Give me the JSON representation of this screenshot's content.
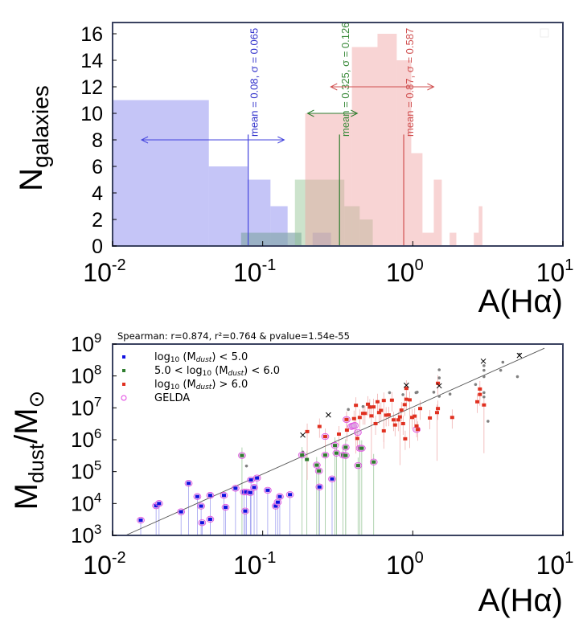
{
  "chart_data": [
    {
      "type": "histogram",
      "xlabel": "A(Hα)",
      "ylabel": "N_galaxies",
      "ylabel_main": "N",
      "ylabel_sub": "galaxies",
      "xscale": "log",
      "xlim": [
        0.01,
        10
      ],
      "ylim": [
        0,
        16.8
      ],
      "grid": false,
      "yticks": [
        "0",
        "2",
        "4",
        "6",
        "8",
        "10",
        "12",
        "14",
        "16"
      ],
      "xticks": [
        {
          "base": "10",
          "exp": "-2",
          "v": 0.01
        },
        {
          "base": "10",
          "exp": "-1",
          "v": 0.1
        },
        {
          "base": "10",
          "exp": "0",
          "v": 1
        },
        {
          "base": "10",
          "exp": "1",
          "v": 10
        }
      ],
      "series": [
        {
          "color": "#7f7fee",
          "bins": [
            [
              0.01,
              0.0438,
              11
            ],
            [
              0.0438,
              0.0791,
              6
            ],
            [
              0.0791,
              0.1127,
              5
            ],
            [
              0.1127,
              0.1466,
              3
            ],
            [
              0.0718,
              0.181,
              1
            ],
            [
              0.215,
              0.285,
              1
            ]
          ],
          "mean": 0.08,
          "mean_line_top": 8.4,
          "arrow": [
            0.0156,
            0.139,
            8
          ],
          "label": "mean = 0.08, σ = 0.065",
          "label_color": "#3333cc",
          "line_color": "#4444dd"
        },
        {
          "color": "#8fc08f",
          "bins": [
            [
              0.0718,
              0.181,
              1
            ],
            [
              0.164,
              0.35,
              5
            ],
            [
              0.35,
              0.443,
              3
            ],
            [
              0.443,
              0.541,
              2
            ]
          ],
          "mean": 0.325,
          "mean_line_top": 8.4,
          "arrow": [
            0.199,
            0.427,
            10
          ],
          "label": "mean = 0.325, σ = 0.126",
          "label_color": "#3a8a3a",
          "line_color": "#2e7d2e"
        },
        {
          "color": "#f0a0a0",
          "bins": [
            [
              0.192,
              0.393,
              10
            ],
            [
              0.393,
              0.582,
              15
            ],
            [
              0.582,
              0.782,
              16
            ],
            [
              0.782,
              0.977,
              14
            ],
            [
              0.977,
              1.16,
              7
            ],
            [
              1.16,
              1.38,
              1
            ],
            [
              1.38,
              1.56,
              5
            ],
            [
              1.76,
              1.95,
              1
            ],
            [
              2.55,
              2.75,
              1
            ],
            [
              2.75,
              2.91,
              3
            ]
          ],
          "mean": 0.87,
          "mean_line_top": 8.4,
          "arrow": [
            0.284,
            1.38,
            12
          ],
          "label": "mean = 0.87, σ = 0.587",
          "label_color": "#d05050",
          "line_color": "#d05050"
        }
      ]
    },
    {
      "type": "scatter",
      "title": "Spearman: r=0.874, r²=0.764 & pvalue=1.54e-55",
      "xlabel": "A(Hα)",
      "ylabel_main": "M",
      "ylabel_sub": "dust",
      "ylabel_tail": "/M",
      "ylabel_sub2": "⊙",
      "xscale": "log",
      "yscale": "log",
      "xlim": [
        0.01,
        10
      ],
      "ylim": [
        1000,
        1000000000
      ],
      "grid": false,
      "legend_placement": "top-left",
      "xticks": [
        {
          "base": "10",
          "exp": "-2",
          "v": 0.01
        },
        {
          "base": "10",
          "exp": "-1",
          "v": 0.1
        },
        {
          "base": "10",
          "exp": "0",
          "v": 1
        },
        {
          "base": "10",
          "exp": "1",
          "v": 10
        }
      ],
      "yticks": [
        {
          "base": "10",
          "exp": "3",
          "v": 1000.0
        },
        {
          "base": "10",
          "exp": "4",
          "v": 10000.0
        },
        {
          "base": "10",
          "exp": "5",
          "v": 100000.0
        },
        {
          "base": "10",
          "exp": "6",
          "v": 1000000.0
        },
        {
          "base": "10",
          "exp": "7",
          "v": 10000000.0
        },
        {
          "base": "10",
          "exp": "8",
          "v": 100000000.0
        },
        {
          "base": "10",
          "exp": "9",
          "v": 1000000000.0
        }
      ],
      "legend": [
        {
          "marker": "square",
          "color": "#1010e0",
          "pre": "log",
          "sub": "10",
          "mid": " (M",
          "msub": "dust",
          "post": ") < 5.0"
        },
        {
          "marker": "square",
          "color": "#2e7d2e",
          "pre": "5.0 < log",
          "sub": "10",
          "mid": " (M",
          "msub": "dust",
          "post": ") < 6.0"
        },
        {
          "marker": "square",
          "color": "#e03020",
          "pre": "log",
          "sub": "10",
          "mid": " (M",
          "msub": "dust",
          "post": ") > 6.0"
        },
        {
          "marker": "circle",
          "color": "#e040e0",
          "pre": "GELDA",
          "sub": "",
          "mid": "",
          "msub": "",
          "post": ""
        }
      ],
      "fit_line": [
        [
          0.0122,
          1000
        ],
        [
          7.53,
          740000000
        ]
      ],
      "blue": [
        [
          0.0154,
          3000
        ],
        [
          0.0195,
          8500
        ],
        [
          0.0204,
          10000
        ],
        [
          0.0286,
          5500
        ],
        [
          0.0321,
          43000
        ],
        [
          0.0367,
          16500
        ],
        [
          0.0389,
          8300
        ],
        [
          0.0395,
          2500
        ],
        [
          0.0447,
          18000
        ],
        [
          0.0447,
          3200
        ],
        [
          0.0552,
          18000
        ],
        [
          0.0566,
          7600
        ],
        [
          0.0659,
          30000
        ],
        [
          0.075,
          23000
        ],
        [
          0.078,
          23000
        ],
        [
          0.0765,
          5800
        ],
        [
          0.0828,
          22000
        ],
        [
          0.0836,
          55000
        ],
        [
          0.0877,
          32000
        ],
        [
          0.0917,
          63000
        ],
        [
          0.108,
          26000
        ],
        [
          0.122,
          8300
        ],
        [
          0.126,
          11000
        ],
        [
          0.13,
          16500
        ],
        [
          0.152,
          19000
        ],
        [
          0.239,
          33000
        ],
        [
          0.29,
          59000
        ]
      ],
      "green": [
        [
          0.0728,
          320000
        ],
        [
          0.183,
          330000
        ],
        [
          0.197,
          240000
        ],
        [
          0.229,
          160000
        ],
        [
          0.237,
          105000
        ],
        [
          0.261,
          330000
        ],
        [
          0.31,
          380000
        ],
        [
          0.343,
          330000
        ],
        [
          0.357,
          320000
        ],
        [
          0.432,
          155000
        ],
        [
          0.549,
          200000
        ],
        [
          0.303,
          660000
        ],
        [
          0.357,
          580000
        ],
        [
          0.444,
          540000
        ],
        [
          0.457,
          540000
        ]
      ],
      "red": [
        [
          0.198,
          1800000
        ],
        [
          0.239,
          2600000
        ],
        [
          0.261,
          1260000
        ],
        [
          0.322,
          1500000
        ],
        [
          0.362,
          4300000
        ],
        [
          0.364,
          2000000
        ],
        [
          0.406,
          4600000
        ],
        [
          0.418,
          12000000
        ],
        [
          0.427,
          1100000
        ],
        [
          0.443,
          5000000
        ],
        [
          0.466,
          6700000
        ],
        [
          0.48,
          6700000
        ],
        [
          0.502,
          13000000
        ],
        [
          0.517,
          10500000
        ],
        [
          0.53,
          5600000
        ],
        [
          0.548,
          10700000
        ],
        [
          0.565,
          3200000
        ],
        [
          0.582,
          15500000
        ],
        [
          0.596,
          7100000
        ],
        [
          0.614,
          8300000
        ],
        [
          0.641,
          1900000
        ],
        [
          0.641,
          17000000
        ],
        [
          0.664,
          5900000
        ],
        [
          0.691,
          6000000
        ],
        [
          0.726,
          17400000
        ],
        [
          0.745,
          4200000
        ],
        [
          0.762,
          2900000
        ],
        [
          0.801,
          4200000
        ],
        [
          0.821,
          5200000
        ],
        [
          0.841,
          8500000
        ],
        [
          0.862,
          3200000
        ],
        [
          0.883,
          12600000
        ],
        [
          0.89,
          1070000
        ],
        [
          0.906,
          18600000
        ],
        [
          0.906,
          40700000
        ],
        [
          0.953,
          17800000
        ],
        [
          0.99,
          5000000
        ],
        [
          1.03,
          5500000
        ],
        [
          1.06,
          2700000
        ],
        [
          1.08,
          2100000
        ],
        [
          1.12,
          9500000
        ],
        [
          1.3,
          4800000
        ],
        [
          1.45,
          7100000
        ],
        [
          1.47,
          9500000
        ],
        [
          1.47,
          59000000
        ],
        [
          1.83,
          5000000
        ],
        [
          2.69,
          15500000
        ],
        [
          2.8,
          26300000
        ],
        [
          2.8,
          38900000
        ],
        [
          2.98,
          12300000
        ]
      ],
      "gelda_red": [
        [
          0.362,
          4300000
        ],
        [
          0.39,
          2600000
        ],
        [
          0.4,
          2700000
        ],
        [
          0.41,
          2800000
        ],
        [
          0.43,
          1700000
        ],
        [
          0.261,
          1260000
        ],
        [
          1.06,
          2100000
        ]
      ],
      "grey": [
        [
          0.078,
          150000
        ],
        [
          0.185,
          410000
        ],
        [
          0.372,
          8900000
        ],
        [
          0.466,
          11000000
        ],
        [
          0.52,
          11000000
        ],
        [
          0.7,
          30000000
        ],
        [
          0.86,
          26000000
        ],
        [
          1.05,
          30000000
        ],
        [
          1.07,
          31000000
        ],
        [
          1.38,
          31000000
        ],
        [
          1.5,
          156000000
        ],
        [
          1.5,
          87000000
        ],
        [
          1.5,
          23000000
        ],
        [
          1.77,
          27000000
        ],
        [
          2.62,
          54000000
        ],
        [
          2.98,
          210000000
        ],
        [
          2.98,
          150000000
        ],
        [
          2.98,
          95000000
        ],
        [
          2.98,
          30000000
        ],
        [
          2.98,
          22000000
        ],
        [
          3.17,
          3800000
        ],
        [
          3.85,
          150000000
        ],
        [
          3.98,
          270000000
        ],
        [
          4.98,
          95000000
        ],
        [
          5.13,
          480000000
        ]
      ],
      "crosses": [
        [
          0.185,
          1400000
        ],
        [
          0.274,
          6000000
        ],
        [
          0.906,
          51000000
        ],
        [
          1.5,
          49000000
        ],
        [
          2.95,
          290000000
        ],
        [
          5.13,
          440000000
        ]
      ],
      "colors": {
        "blue": "#1010e0",
        "green": "#2e7d2e",
        "red": "#e03020",
        "gelda": "#e040e0",
        "grey": "#808080",
        "fit": "#555555",
        "frame": "#3a4260"
      }
    }
  ]
}
